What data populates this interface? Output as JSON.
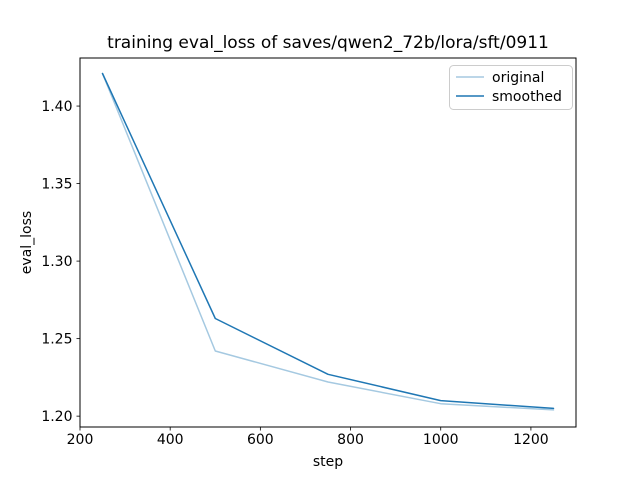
{
  "chart_data": {
    "type": "line",
    "title": "training eval_loss of saves/qwen2_72b/lora/sft/0911",
    "xlabel": "step",
    "ylabel": "eval_loss",
    "x": [
      250,
      500,
      750,
      1000,
      1250
    ],
    "series": [
      {
        "name": "original",
        "color": "#a5c9e1",
        "line_width": 1.5,
        "values": [
          1.421,
          1.242,
          1.222,
          1.208,
          1.204
        ]
      },
      {
        "name": "smoothed",
        "color": "#1f77b4",
        "line_width": 1.5,
        "values": [
          1.421,
          1.263,
          1.227,
          1.21,
          1.205
        ]
      }
    ],
    "xlim": [
      200,
      1300
    ],
    "ylim": [
      1.193,
      1.431
    ],
    "xticks": {
      "values": [
        200,
        400,
        600,
        800,
        1000,
        1200
      ],
      "labels": [
        "200",
        "400",
        "600",
        "800",
        "1000",
        "1200"
      ]
    },
    "yticks": {
      "values": [
        1.2,
        1.25,
        1.3,
        1.35,
        1.4
      ],
      "labels": [
        "1.20",
        "1.25",
        "1.30",
        "1.35",
        "1.40"
      ]
    },
    "grid": false,
    "legend_position": "upper right",
    "background_color": "#ffffff",
    "axis_color": "#000000",
    "legend_border_color": "#cccccc"
  }
}
